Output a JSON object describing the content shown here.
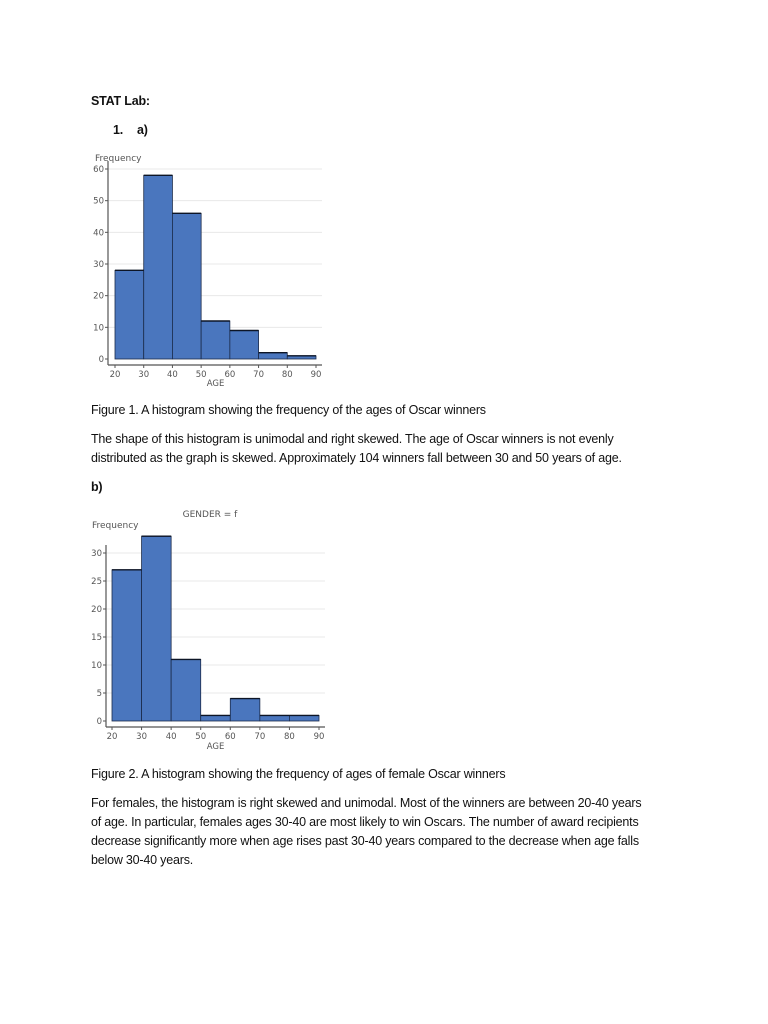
{
  "document": {
    "heading": "STAT Lab:",
    "item_number": "1.",
    "part_a_label": "a)",
    "part_b_label": "b)",
    "figure1_caption": "Figure 1. A histogram showing the frequency of the ages of Oscar winners",
    "figure1_paragraph_line1": "The shape of this histogram is unimodal and right skewed. The age of Oscar winners is not evenly",
    "figure1_paragraph_line2": "distributed as the graph is skewed. Approximately 104 winners fall between 30 and 50 years of age.",
    "figure2_caption": "Figure 2. A histogram showing the frequency of ages of female Oscar winners",
    "figure2_paragraph_line1": "For females, the histogram is right skewed and unimodal. Most of the winners are between 20-40 years",
    "figure2_paragraph_line2": "of age. In particular, females ages 30-40 are most likely to win Oscars. The number of award recipients",
    "figure2_paragraph_line3": "decrease significantly more when age rises past 30-40 years compared to the decrease when age falls",
    "figure2_paragraph_line4": "below 30-40 years."
  },
  "colors": {
    "bar_fill": "#4a76be",
    "bar_stroke": "#1b2b4a",
    "gridline": "#e8e8e8",
    "axis": "#555555"
  },
  "chart_data": [
    {
      "type": "bar",
      "title": "",
      "xlabel": "AGE",
      "ylabel": "Frequency",
      "bin_edges": [
        20,
        30,
        40,
        50,
        60,
        70,
        80,
        90
      ],
      "categories": [
        "20-30",
        "30-40",
        "40-50",
        "50-60",
        "60-70",
        "70-80",
        "80-90"
      ],
      "values": [
        28,
        58,
        46,
        12,
        9,
        2,
        1
      ],
      "xticks": [
        "20",
        "30",
        "40",
        "50",
        "60",
        "70",
        "80",
        "90"
      ],
      "yticks": [
        "0",
        "10",
        "20",
        "30",
        "40",
        "50",
        "60"
      ],
      "ylim": [
        0,
        60
      ],
      "grid": true
    },
    {
      "type": "bar",
      "title": "GENDER = f",
      "xlabel": "AGE",
      "ylabel": "Frequency",
      "bin_edges": [
        20,
        30,
        40,
        50,
        60,
        70,
        80,
        90
      ],
      "categories": [
        "20-30",
        "30-40",
        "40-50",
        "50-60",
        "60-70",
        "70-80",
        "80-90"
      ],
      "values": [
        27,
        33,
        11,
        1,
        4,
        1,
        1
      ],
      "xticks": [
        "20",
        "30",
        "40",
        "50",
        "60",
        "70",
        "80",
        "90"
      ],
      "yticks": [
        "0",
        "5",
        "10",
        "15",
        "20",
        "25",
        "30"
      ],
      "ylim": [
        0,
        33
      ],
      "grid": true
    }
  ]
}
